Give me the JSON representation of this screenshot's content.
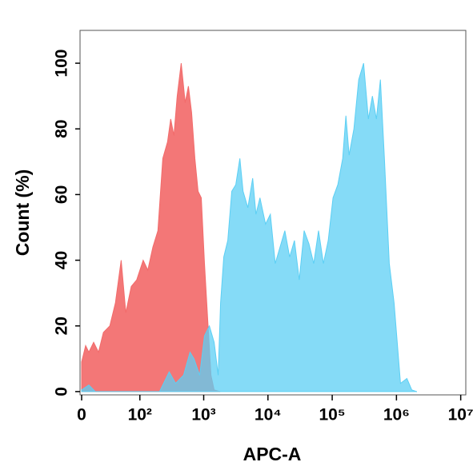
{
  "chart_data": {
    "type": "area",
    "x_label": "APC-A",
    "y_label": "Count  (%)",
    "xscale": "biexponential",
    "xlim": [
      0,
      12000000
    ],
    "ylim": [
      -1,
      110
    ],
    "xticks": [
      0,
      {
        "value": 100,
        "label": "10²"
      },
      {
        "value": 1000,
        "label": "10³"
      },
      {
        "value": 10000,
        "label": "10⁴"
      },
      {
        "value": 100000,
        "label": "10⁵"
      },
      {
        "value": 1000000,
        "label": "10⁶"
      },
      {
        "value": 10000000,
        "label": "10⁷"
      }
    ],
    "yticks": [
      0,
      20,
      40,
      60,
      80,
      100
    ],
    "series": [
      {
        "color": "#f26b6b",
        "x": [
          0,
          3.6,
          6.6,
          11.2,
          16.2,
          21.7,
          30,
          38.5,
          48.9,
          58.8,
          72.5,
          89,
          113,
          134,
          161,
          193,
          230,
          273,
          306,
          344,
          386,
          446,
          515,
          578,
          649,
          728,
          817,
          917,
          1029,
          1154,
          1296,
          1454,
          1778
        ],
        "values": [
          9,
          14,
          12,
          15,
          12,
          18,
          20,
          27,
          40,
          24,
          32,
          34,
          40,
          37,
          44,
          49,
          71,
          76,
          83,
          78,
          90,
          100,
          88,
          93,
          85,
          71,
          61,
          59,
          39,
          22,
          5,
          0.5,
          0
        ]
      },
      {
        "color": "#5ccff4",
        "x": [
          0,
          6.6,
          12.8,
          205,
          290,
          365,
          487,
          612,
          707,
          866,
          1029,
          1224,
          1454,
          1680,
          1830,
          2055,
          2372,
          2739,
          3162,
          3654,
          4100,
          4870,
          5790,
          6500,
          7510,
          9180,
          10910,
          12970,
          15410,
          18320,
          21770,
          25870,
          30740,
          36540,
          43430,
          51620,
          61350,
          72900,
          86650,
          103000,
          122400,
          145500,
          163300,
          183200,
          217700,
          258800,
          307600,
          365500,
          422100,
          487200,
          562800,
          649900,
          772500,
          918300,
          1156000,
          1455000,
          1730000,
          2055000
        ],
        "values": [
          0.5,
          2,
          0,
          0,
          6,
          2.5,
          5,
          12,
          10,
          5,
          17,
          20,
          15,
          5,
          27,
          41,
          46,
          61,
          63,
          71,
          61,
          56,
          65,
          54,
          59,
          51,
          54,
          39,
          44,
          49,
          41,
          46,
          34,
          49,
          45,
          39,
          49,
          39,
          46,
          59,
          63,
          71,
          84,
          72,
          80,
          95,
          100,
          83,
          90,
          83,
          95,
          71,
          39,
          27,
          2.5,
          4,
          0.5,
          0
        ]
      }
    ]
  }
}
